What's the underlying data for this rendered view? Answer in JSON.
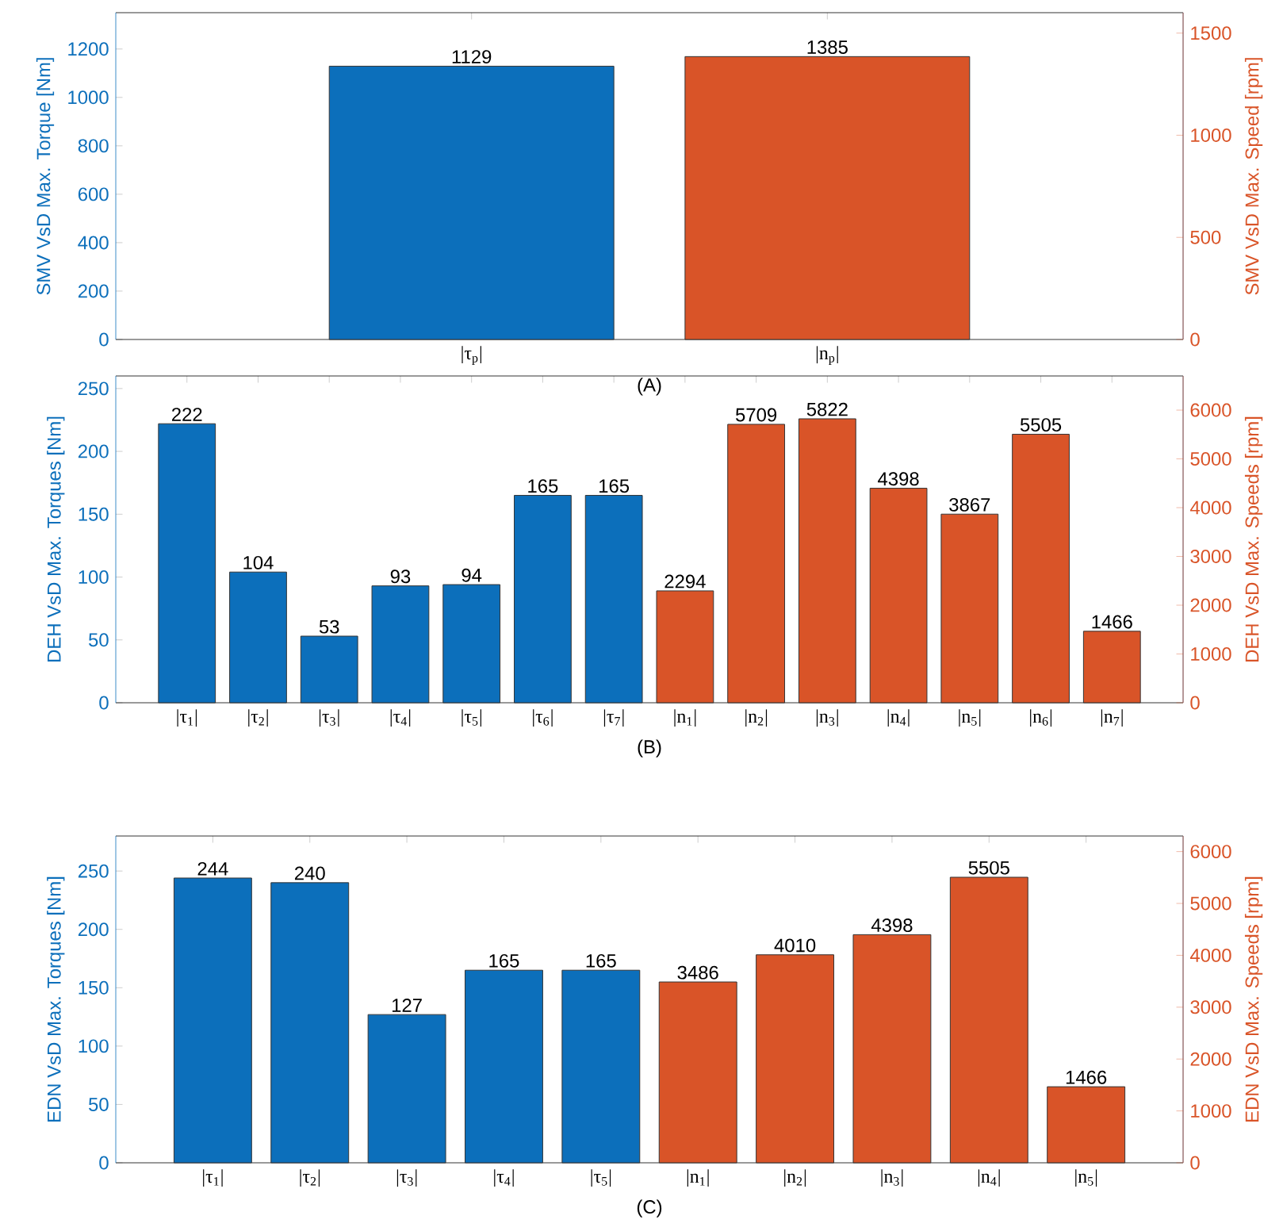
{
  "chart_data": [
    {
      "type": "bar",
      "categories": [
        "|τ$_{p}$|",
        "|n$_{p}$|"
      ],
      "xlabel": "(A)",
      "ylabel": "SMV VsD Max. Torque [Nm]",
      "y2label": "SMV VsD Max. Speed [rpm]",
      "ylim": [
        0,
        1350
      ],
      "yticks": [
        0,
        200,
        400,
        600,
        800,
        1000,
        1200
      ],
      "y2lim": [
        0,
        1600
      ],
      "y2ticks": [
        0,
        500,
        1000,
        1500
      ],
      "data_labels": true,
      "series": [
        {
          "color": "#0c6fbb",
          "values": [
            1129,
            null
          ]
        },
        {
          "color": "#d95428",
          "axis": "y2",
          "values": [
            null,
            1385
          ]
        }
      ]
    },
    {
      "type": "bar",
      "categories": [
        "|τ$_{1}$|",
        "|τ$_{2}$|",
        "|τ$_{3}$|",
        "|τ$_{4}$|",
        "|τ$_{5}$|",
        "|τ$_{6}$|",
        "|τ$_{7}$|",
        "|n$_{1}$|",
        "|n$_{2}$|",
        "|n$_{3}$|",
        "|n$_{4}$|",
        "|n$_{5}$|",
        "|n$_{6}$|",
        "|n$_{7}$|"
      ],
      "xlabel": "(B)",
      "ylabel": "DEH VsD Max. Torques [Nm]",
      "y2label": "DEH VsD Max. Speeds [rpm]",
      "ylim": [
        0,
        260
      ],
      "yticks": [
        0,
        50,
        100,
        150,
        200,
        250
      ],
      "y2lim": [
        0,
        6700
      ],
      "y2ticks": [
        0,
        1000,
        2000,
        3000,
        4000,
        5000,
        6000
      ],
      "data_labels": true,
      "series": [
        {
          "color": "#0c6fbb",
          "values": [
            222,
            104,
            53,
            93,
            94,
            165,
            165,
            null,
            null,
            null,
            null,
            null,
            null,
            null
          ]
        },
        {
          "color": "#d95428",
          "axis": "y2",
          "values": [
            null,
            null,
            null,
            null,
            null,
            null,
            null,
            2294,
            5709,
            5822,
            4398,
            3867,
            5505,
            1466
          ]
        }
      ]
    },
    {
      "type": "bar",
      "categories": [
        "|τ$_{1}$|",
        "|τ$_{2}$|",
        "|τ$_{3}$|",
        "|τ$_{4}$|",
        "|τ$_{5}$|",
        "|n$_{1}$|",
        "|n$_{2}$|",
        "|n$_{3}$|",
        "|n$_{4}$|",
        "|n$_{5}$|"
      ],
      "xlabel": "(C)",
      "ylabel": "EDN VsD Max. Torques [Nm]",
      "y2label": "EDN VsD Max. Speeds [rpm]",
      "ylim": [
        0,
        280
      ],
      "yticks": [
        0,
        50,
        100,
        150,
        200,
        250
      ],
      "y2lim": [
        0,
        6300
      ],
      "y2ticks": [
        0,
        1000,
        2000,
        3000,
        4000,
        5000,
        6000
      ],
      "data_labels": true,
      "series": [
        {
          "color": "#0c6fbb",
          "values": [
            244,
            240,
            127,
            165,
            165,
            null,
            null,
            null,
            null,
            null
          ]
        },
        {
          "color": "#d95428",
          "axis": "y2",
          "values": [
            null,
            null,
            null,
            null,
            null,
            3486,
            4010,
            4398,
            5505,
            1466
          ]
        }
      ]
    }
  ]
}
